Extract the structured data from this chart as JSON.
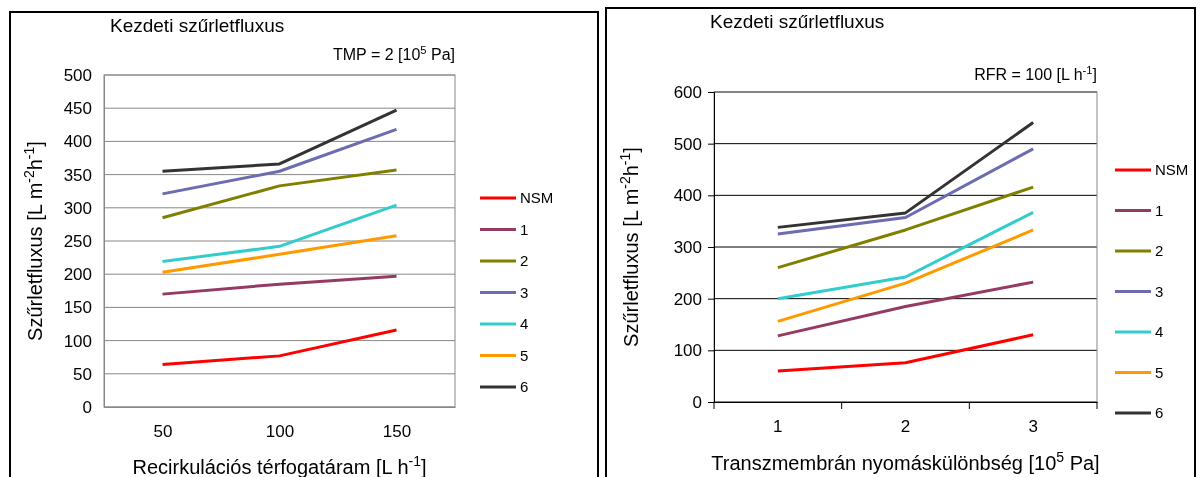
{
  "chart_data": [
    {
      "type": "line",
      "title": "Kezdeti szűrletfluxus",
      "annotations": [
        "TMP = 2 [10$^{5}$ Pa]"
      ],
      "xlabel": "Recirkulációs térfogatáram [L h$^{-1}$]",
      "ylabel": "Szűrletfluxus [L m$^{-2}$h$^{-1}$]",
      "x": [
        50,
        100,
        150
      ],
      "xlim": [
        25,
        175
      ],
      "xticks": [
        50,
        100,
        150
      ],
      "ylim": [
        0,
        500
      ],
      "yticks": [
        0,
        50,
        100,
        150,
        200,
        250,
        300,
        350,
        400,
        450,
        500
      ],
      "grid": "y",
      "legend": "right",
      "marker": "none",
      "line_style": "solid",
      "series": [
        {
          "name": "NSM",
          "color": "#ff0000",
          "values": [
            64,
            77,
            116
          ]
        },
        {
          "name": "1",
          "color": "#953a62",
          "values": [
            170,
            185,
            197
          ]
        },
        {
          "name": "2",
          "color": "#808000",
          "values": [
            285,
            333,
            357
          ]
        },
        {
          "name": "3",
          "color": "#6c6cb0",
          "values": [
            321,
            355,
            418
          ]
        },
        {
          "name": "4",
          "color": "#33cccc",
          "values": [
            219,
            242,
            304
          ]
        },
        {
          "name": "5",
          "color": "#ff9900",
          "values": [
            203,
            230,
            258
          ]
        },
        {
          "name": "6",
          "color": "#333333",
          "values": [
            355,
            366,
            447
          ]
        }
      ]
    },
    {
      "type": "line",
      "title": "Kezdeti szűrletfluxus",
      "annotations": [
        "RFR = 100 [L h$^{-1}$]"
      ],
      "xlabel": "Transzmembrán nyomáskülönbség [10$^{5}$ Pa]",
      "ylabel": "Szűrletfluxus [L m$^{-2}$h$^{-1}$]",
      "categories": [
        "1",
        "2",
        "3"
      ],
      "ylim": [
        0,
        600
      ],
      "yticks": [
        0,
        100,
        200,
        300,
        400,
        500,
        600
      ],
      "grid": "y",
      "legend": "right",
      "marker": "none",
      "line_style": "solid",
      "series": [
        {
          "name": "NSM",
          "color": "#ff0000",
          "values": [
            60,
            76,
            130
          ]
        },
        {
          "name": "1",
          "color": "#953a62",
          "values": [
            128,
            185,
            232
          ]
        },
        {
          "name": "2",
          "color": "#808000",
          "values": [
            260,
            333,
            416
          ]
        },
        {
          "name": "3",
          "color": "#6c6cb0",
          "values": [
            325,
            357,
            490
          ]
        },
        {
          "name": "4",
          "color": "#33cccc",
          "values": [
            200,
            242,
            367
          ]
        },
        {
          "name": "5",
          "color": "#ff9900",
          "values": [
            156,
            230,
            333
          ]
        },
        {
          "name": "6",
          "color": "#333333",
          "values": [
            338,
            366,
            541
          ]
        }
      ]
    }
  ]
}
